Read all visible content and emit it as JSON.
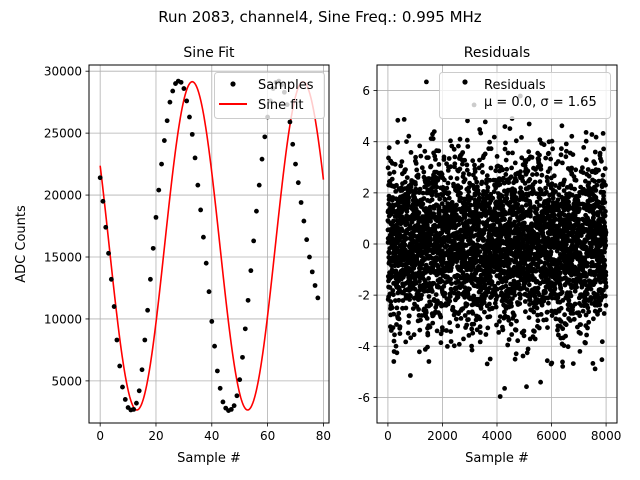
{
  "suptitle": "Run 2083, channel4, Sine Freq.: 0.995 MHz",
  "chart_data": [
    {
      "type": "scatter",
      "title": "Sine Fit",
      "xlabel": "Sample #",
      "ylabel": "ADC Counts",
      "xlim": [
        -4,
        82
      ],
      "ylim": [
        1600,
        30500
      ],
      "xticks": [
        0,
        20,
        40,
        60,
        80
      ],
      "yticks": [
        5000,
        10000,
        15000,
        20000,
        25000,
        30000
      ],
      "grid": true,
      "legend": {
        "location": "top-right",
        "entries": [
          "Samples",
          "Sine fit"
        ]
      },
      "fit": {
        "amplitude": 13250,
        "offset": 15900,
        "period": 39.7,
        "peak_sample": 33,
        "x_range": [
          0,
          80
        ]
      },
      "series": [
        {
          "name": "Samples",
          "style": "points",
          "color": "#000000",
          "x": [
            0,
            1,
            2,
            3,
            4,
            5,
            6,
            7,
            8,
            9,
            10,
            11,
            12,
            13,
            14,
            15,
            16,
            17,
            18,
            19,
            20,
            21,
            22,
            23,
            24,
            25,
            26,
            27,
            28,
            29,
            30,
            31,
            32,
            33,
            34,
            35,
            36,
            37,
            38,
            39,
            40,
            41,
            42,
            43,
            44,
            45,
            46,
            47,
            48,
            49,
            50,
            51,
            52,
            53,
            54,
            55,
            56,
            57,
            58,
            59,
            60,
            61,
            62,
            63,
            64,
            65,
            66,
            67,
            68,
            69,
            70,
            71,
            72,
            73,
            74,
            75,
            76,
            77,
            78
          ],
          "y": [
            21400,
            19500,
            17400,
            15300,
            13200,
            11000,
            8300,
            6200,
            4500,
            3500,
            2850,
            2650,
            2700,
            3200,
            4200,
            5900,
            8300,
            10700,
            13200,
            15700,
            18200,
            20400,
            22500,
            24400,
            26000,
            27500,
            28400,
            29000,
            29200,
            29100,
            28600,
            27600,
            26300,
            24900,
            23000,
            20800,
            18800,
            16600,
            14500,
            12200,
            9800,
            7800,
            5800,
            4400,
            3300,
            2800,
            2600,
            2700,
            3000,
            3800,
            5100,
            6900,
            9200,
            11500,
            13900,
            16300,
            18700,
            20800,
            22900,
            24700,
            26300,
            27600,
            28600,
            29100,
            29200,
            28900,
            28300,
            27300,
            25900,
            24100,
            22500,
            21000,
            19400,
            17900,
            16400,
            15000,
            13800,
            12700,
            11700
          ]
        },
        {
          "name": "Sine fit",
          "style": "line",
          "color": "#ff0000"
        }
      ]
    },
    {
      "type": "scatter",
      "title": "Residuals",
      "xlabel": "Sample #",
      "ylabel": "",
      "xlim": [
        -400,
        8400
      ],
      "ylim": [
        -7,
        7
      ],
      "xticks": [
        0,
        2000,
        4000,
        6000,
        8000
      ],
      "yticks": [
        -6,
        -4,
        -2,
        0,
        2,
        4,
        6
      ],
      "grid": true,
      "legend": {
        "location": "top-right",
        "entries": [
          "Residuals",
          "μ = 0.0, σ = 1.65"
        ]
      },
      "distribution": {
        "mean": 0.0,
        "sigma": 1.65,
        "n_points": 8000,
        "min": -6.2,
        "max": 6.5
      },
      "series": [
        {
          "name": "Residuals",
          "style": "points",
          "color": "#000000"
        }
      ]
    }
  ]
}
